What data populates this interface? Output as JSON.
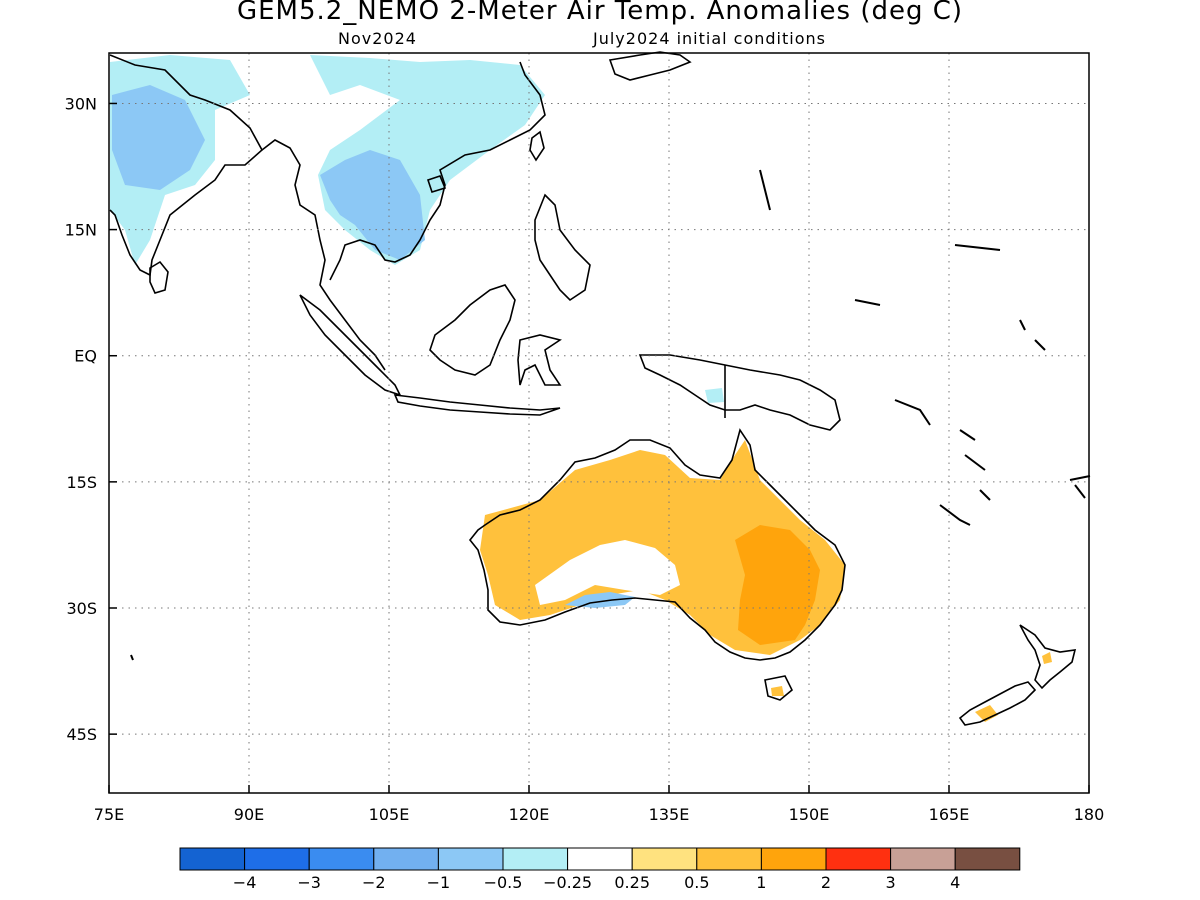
{
  "header": {
    "title": "GEM5.2_NEMO 2-Meter Air Temp. Anomalies (deg C)",
    "valid_month": "Nov2024",
    "initial_conditions": "July2024 initial conditions"
  },
  "map": {
    "lon_range": [
      75,
      180
    ],
    "lat_range": [
      -52,
      36
    ],
    "lon_ticks": [
      {
        "value": 75,
        "label": "75E"
      },
      {
        "value": 90,
        "label": "90E"
      },
      {
        "value": 105,
        "label": "105E"
      },
      {
        "value": 120,
        "label": "120E"
      },
      {
        "value": 135,
        "label": "135E"
      },
      {
        "value": 150,
        "label": "150E"
      },
      {
        "value": 165,
        "label": "165E"
      },
      {
        "value": 180,
        "label": "180"
      }
    ],
    "lat_ticks": [
      {
        "value": 30,
        "label": "30N"
      },
      {
        "value": 15,
        "label": "15N"
      },
      {
        "value": 0,
        "label": "EQ"
      },
      {
        "value": -15,
        "label": "15S"
      },
      {
        "value": -30,
        "label": "30S"
      },
      {
        "value": -45,
        "label": "45S"
      }
    ],
    "grid": "dotted",
    "colors": {
      "coast": "#000000",
      "cool_025_05": "#b3eef5",
      "cool_05_1": "#8cc8f5",
      "cool_1_2": "#72b0f0",
      "warm_025_05": "#ffe27f",
      "warm_05_1": "#ffc13c",
      "warm_1_2": "#ffa40c"
    }
  },
  "colorbar": {
    "colors": [
      "#1463d2",
      "#1e6ee8",
      "#3a8cf0",
      "#72b0f0",
      "#8cc8f5",
      "#b3eef5",
      "#ffffff",
      "#ffe27f",
      "#ffc13c",
      "#ffa40c",
      "#ff3010",
      "#c8a096",
      "#784f41"
    ],
    "labels": [
      "−4",
      "−3",
      "−2",
      "−1",
      "−0.5",
      "−0.25",
      "0.25",
      "0.5",
      "1",
      "2",
      "3",
      "4"
    ]
  }
}
